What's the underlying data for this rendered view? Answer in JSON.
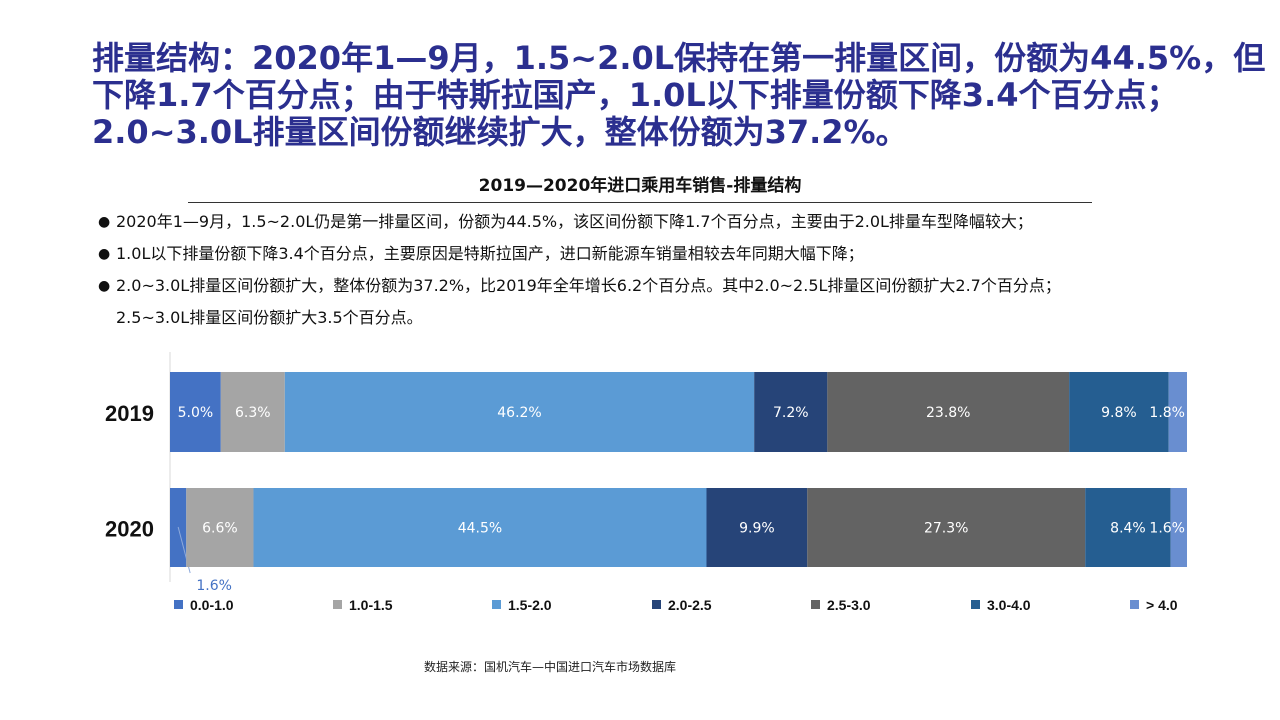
{
  "headline": {
    "lines": [
      "排量结构：2020年1—9月，1.5~2.0L保持在第一排量区间，份额为44.5%，但",
      "下降1.7个百分点；由于特斯拉国产，1.0L以下排量份额下降3.4个百分点；",
      "2.0~3.0L排量区间份额继续扩大，整体份额为37.2%。"
    ]
  },
  "bullets": [
    {
      "marker": "●",
      "text": "2020年1—9月，1.5~2.0L仍是第一排量区间，份额为44.5%，该区间份额下降1.7个百分点，主要由于2.0L排量车型降幅较大；"
    },
    {
      "marker": "●",
      "text": "1.0L以下排量份额下降3.4个百分点，主要原因是特斯拉国产，进口新能源车销量相较去年同期大幅下降；"
    },
    {
      "marker": "●",
      "text": "2.0~3.0L排量区间份额扩大，整体份额为37.2%，比2019年全年增长6.2个百分点。其中2.0~2.5L排量区间份额扩大2.7个百分点；"
    },
    {
      "marker": "",
      "text": "2.5~3.0L排量区间份额扩大3.5个百分点。"
    }
  ],
  "source": "数据来源：国机汽车—中国进口汽车市场数据库",
  "chart_data": {
    "type": "bar",
    "orientation": "horizontal",
    "stacked": "percent",
    "title": "2019—2020年进口乘用车销售-排量结构",
    "categories": [
      "2019",
      "2020"
    ],
    "series": [
      {
        "name": "0.0-1.0",
        "color": "#4472c4",
        "values": [
          5.0,
          1.6
        ],
        "labels": [
          "5.0%",
          "1.6%"
        ]
      },
      {
        "name": "1.0-1.5",
        "color": "#a5a5a5",
        "values": [
          6.3,
          6.6
        ],
        "labels": [
          "6.3%",
          "6.6%"
        ]
      },
      {
        "name": "1.5-2.0",
        "color": "#5b9bd5",
        "values": [
          46.2,
          44.5
        ],
        "labels": [
          "46.2%",
          "44.5%"
        ]
      },
      {
        "name": "2.0-2.5",
        "color": "#264478",
        "values": [
          7.2,
          9.9
        ],
        "labels": [
          "7.2%",
          "9.9%"
        ]
      },
      {
        "name": "2.5-3.0",
        "color": "#636363",
        "values": [
          23.8,
          27.3
        ],
        "labels": [
          "23.8%",
          "27.3%"
        ]
      },
      {
        "name": "3.0-4.0",
        "color": "#255e91",
        "values": [
          9.8,
          8.4
        ],
        "labels": [
          "9.8%",
          "8.4%"
        ]
      },
      {
        "name": "> 4.0",
        "color": "#698ed0",
        "values": [
          1.8,
          1.6
        ],
        "labels": [
          "1.8%",
          "1.6%"
        ]
      }
    ],
    "legend": "bottom",
    "grid": false
  }
}
